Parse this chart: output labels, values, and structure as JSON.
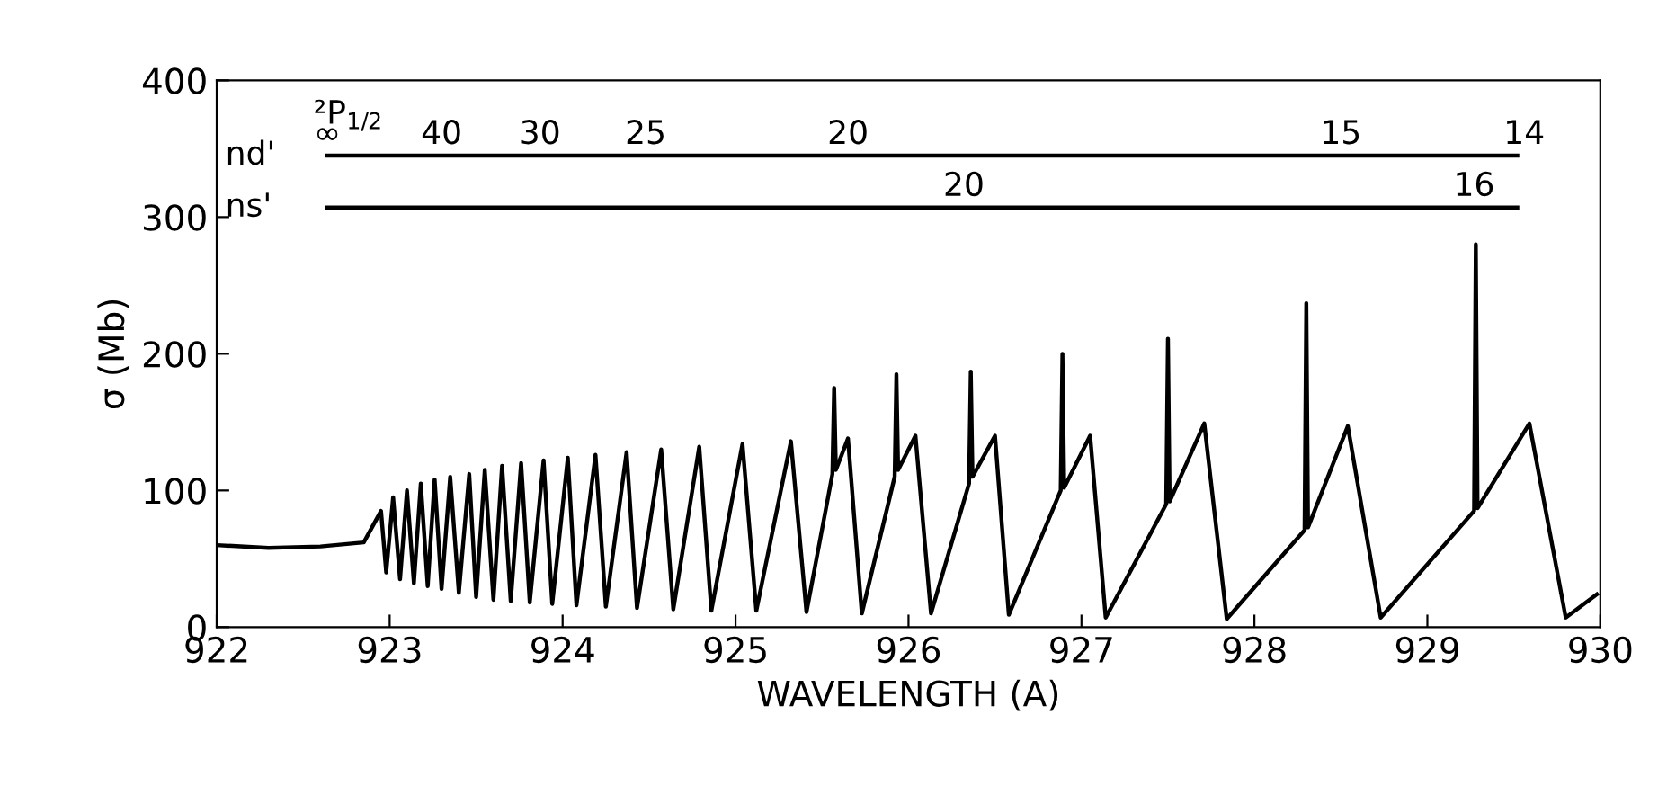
{
  "chart_data": {
    "type": "line",
    "xlabel": "WAVELENGTH (A)",
    "ylabel": "σ (Mb)",
    "xlim": [
      922,
      930
    ],
    "ylim": [
      0,
      400
    ],
    "xticks": [
      922,
      923,
      924,
      925,
      926,
      927,
      928,
      929,
      930
    ],
    "yticks": [
      0,
      100,
      200,
      300,
      400
    ],
    "grid": false,
    "legend": false,
    "marker": "none",
    "line_style": "solid",
    "series": [
      {
        "color": "#000000",
        "x": [
          922.0,
          922.3,
          922.6,
          922.85,
          922.95,
          922.98,
          923.02,
          923.06,
          923.1,
          923.14,
          923.18,
          923.22,
          923.26,
          923.3,
          923.35,
          923.4,
          923.46,
          923.5,
          923.55,
          923.6,
          923.65,
          923.7,
          923.76,
          923.81,
          923.89,
          923.94,
          924.03,
          924.08,
          924.19,
          924.25,
          924.37,
          924.43,
          924.57,
          924.64,
          924.79,
          924.86,
          925.04,
          925.12,
          925.32,
          925.41,
          925.56,
          925.57,
          925.58,
          925.65,
          925.73,
          925.92,
          925.93,
          925.94,
          926.04,
          926.13,
          926.35,
          926.36,
          926.37,
          926.5,
          926.58,
          926.88,
          926.89,
          926.9,
          927.05,
          927.14,
          927.49,
          927.5,
          927.51,
          927.71,
          927.84,
          928.29,
          928.3,
          928.31,
          928.54,
          928.73,
          929.27,
          929.28,
          929.29,
          929.59,
          929.8,
          929.98
        ],
        "values": [
          60,
          58,
          59,
          62,
          85,
          40,
          95,
          35,
          100,
          32,
          105,
          30,
          108,
          28,
          110,
          25,
          112,
          22,
          115,
          20,
          118,
          19,
          120,
          18,
          122,
          17,
          124,
          16,
          126,
          15,
          128,
          14,
          130,
          13,
          132,
          12,
          134,
          12,
          136,
          11,
          112,
          175,
          115,
          138,
          10,
          110,
          185,
          115,
          140,
          10,
          105,
          187,
          110,
          140,
          9,
          100,
          200,
          102,
          140,
          7,
          90,
          211,
          92,
          149,
          6,
          71,
          237,
          73,
          147,
          7,
          85,
          280,
          87,
          149,
          7,
          24
        ]
      }
    ],
    "ref_lines": [
      {
        "axis": "y",
        "value": 345,
        "label": "nd'"
      },
      {
        "axis": "y",
        "value": 307,
        "label": "ns'"
      }
    ],
    "annotations": [
      "²P$_{1/2}$",
      {
        "text": "∞",
        "x": 922.64,
        "y": 345
      },
      {
        "text": "40",
        "x": 923.3,
        "y": 345
      },
      {
        "text": "30",
        "x": 923.87,
        "y": 345
      },
      {
        "text": "25",
        "x": 924.48,
        "y": 345
      },
      {
        "text": "20",
        "x": 925.65,
        "y": 345
      },
      {
        "text": "15",
        "x": 928.5,
        "y": 345
      },
      {
        "text": "14",
        "x": 929.56,
        "y": 345
      },
      {
        "text": "20",
        "x": 926.32,
        "y": 307
      },
      {
        "text": "16",
        "x": 929.27,
        "y": 307
      }
    ]
  }
}
